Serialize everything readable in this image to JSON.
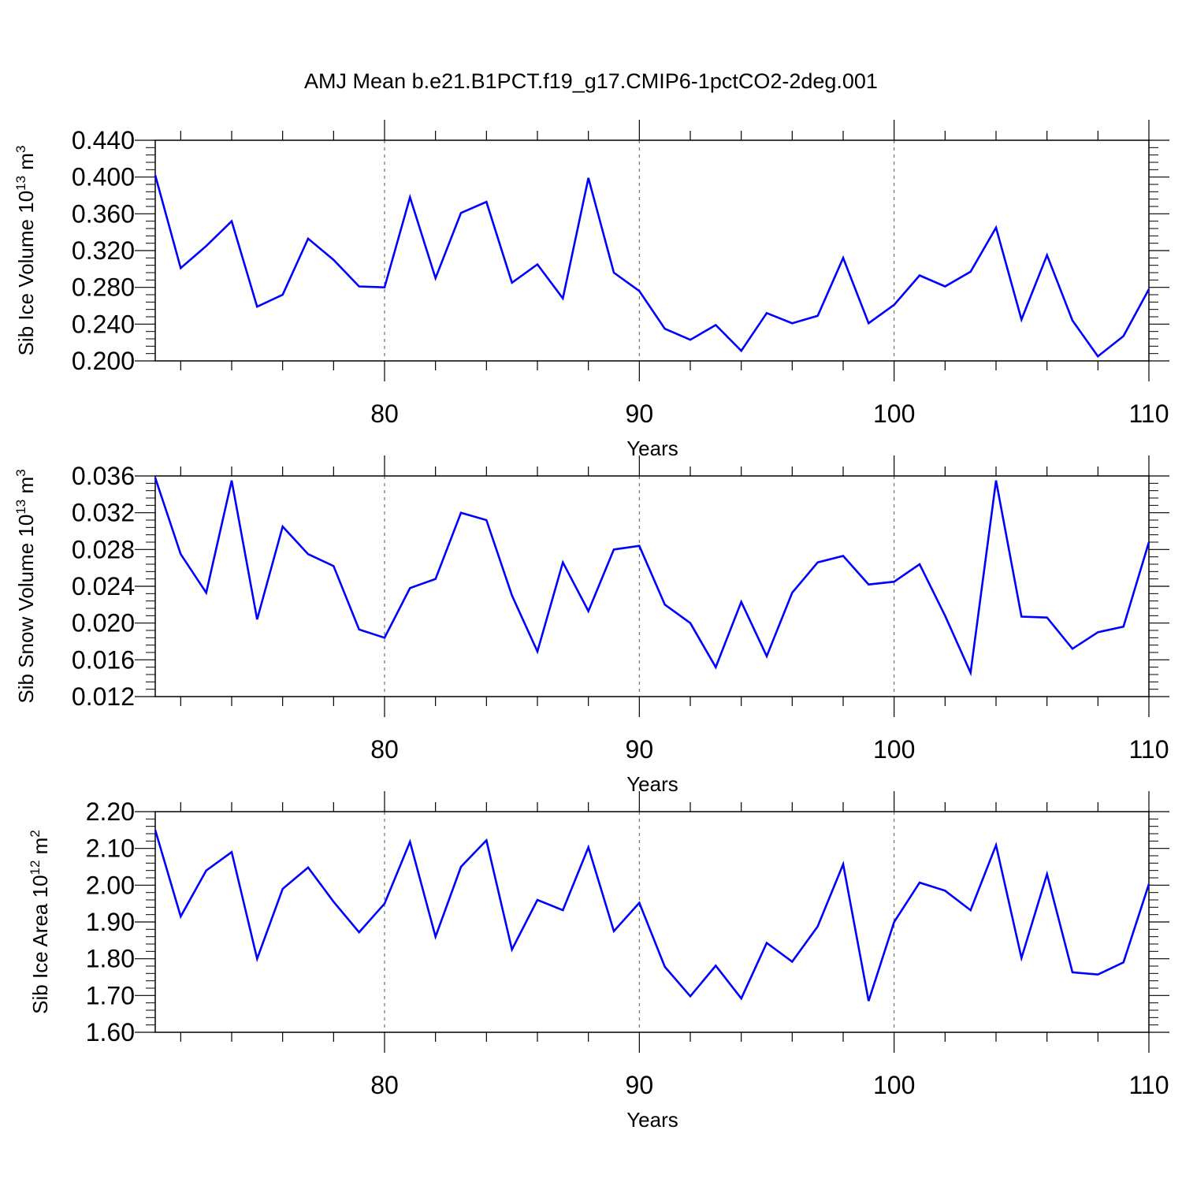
{
  "title": "AMJ Mean b.e21.B1PCT.f19_g17.CMIP6-1pctCO2-2deg.001",
  "colors": {
    "line": "#0000ff",
    "axis": "#000000",
    "grid": "#555555"
  },
  "chart_data": [
    {
      "type": "line",
      "ylabel": "Sib Ice Volume 10",
      "ylabel_exp": "13",
      "ylabel_unit": "m",
      "ylabel_unit_exp": "3",
      "xlabel": "Years",
      "xlim": [
        71,
        110
      ],
      "ylim": [
        0.2,
        0.44
      ],
      "yticks": [
        0.2,
        0.24,
        0.28,
        0.32,
        0.36,
        0.4,
        0.44
      ],
      "ytick_labels": [
        "0.200",
        "0.240",
        "0.280",
        "0.320",
        "0.360",
        "0.400",
        "0.440"
      ],
      "xticks": [
        80,
        90,
        100,
        110
      ],
      "xtick_labels": [
        "80",
        "90",
        "100",
        "110"
      ],
      "grid": "vertical dashed at major x ticks",
      "x": [
        71,
        72,
        73,
        74,
        75,
        76,
        77,
        78,
        79,
        80,
        81,
        82,
        83,
        84,
        85,
        86,
        87,
        88,
        89,
        90,
        91,
        92,
        93,
        94,
        95,
        96,
        97,
        98,
        99,
        100,
        101,
        102,
        103,
        104,
        105,
        106,
        107,
        108,
        109,
        110
      ],
      "series": [
        {
          "values": [
            0.402,
            0.301,
            0.325,
            0.352,
            0.259,
            0.272,
            0.333,
            0.31,
            0.281,
            0.28,
            0.378,
            0.29,
            0.361,
            0.373,
            0.285,
            0.305,
            0.268,
            0.399,
            0.296,
            0.276,
            0.235,
            0.223,
            0.239,
            0.211,
            0.252,
            0.241,
            0.249,
            0.312,
            0.241,
            0.261,
            0.293,
            0.281,
            0.297,
            0.345,
            0.245,
            0.315,
            0.244,
            0.205,
            0.227,
            0.278
          ]
        }
      ]
    },
    {
      "type": "line",
      "ylabel": "Sib Snow Volume 10",
      "ylabel_exp": "13",
      "ylabel_unit": "m",
      "ylabel_unit_exp": "3",
      "xlabel": "Years",
      "xlim": [
        71,
        110
      ],
      "ylim": [
        0.012,
        0.036
      ],
      "yticks": [
        0.012,
        0.016,
        0.02,
        0.024,
        0.028,
        0.032,
        0.036
      ],
      "ytick_labels": [
        "0.012",
        "0.016",
        "0.020",
        "0.024",
        "0.028",
        "0.032",
        "0.036"
      ],
      "xticks": [
        80,
        90,
        100,
        110
      ],
      "xtick_labels": [
        "80",
        "90",
        "100",
        "110"
      ],
      "grid": "vertical dashed at major x ticks",
      "x": [
        71,
        72,
        73,
        74,
        75,
        76,
        77,
        78,
        79,
        80,
        81,
        82,
        83,
        84,
        85,
        86,
        87,
        88,
        89,
        90,
        91,
        92,
        93,
        94,
        95,
        96,
        97,
        98,
        99,
        100,
        101,
        102,
        103,
        104,
        105,
        106,
        107,
        108,
        109,
        110
      ],
      "series": [
        {
          "values": [
            0.0358,
            0.0275,
            0.0233,
            0.0355,
            0.0204,
            0.0305,
            0.0275,
            0.0262,
            0.0193,
            0.0184,
            0.0238,
            0.0248,
            0.032,
            0.0312,
            0.023,
            0.0169,
            0.0266,
            0.0213,
            0.028,
            0.0284,
            0.022,
            0.02,
            0.0152,
            0.0223,
            0.0164,
            0.0233,
            0.0266,
            0.0273,
            0.0242,
            0.0245,
            0.0264,
            0.0208,
            0.0146,
            0.0355,
            0.0207,
            0.0206,
            0.0172,
            0.019,
            0.0196,
            0.0288
          ]
        }
      ]
    },
    {
      "type": "line",
      "ylabel": "Sib Ice Area 10",
      "ylabel_exp": "12",
      "ylabel_unit": "m",
      "ylabel_unit_exp": "2",
      "xlabel": "Years",
      "xlim": [
        71,
        110
      ],
      "ylim": [
        1.6,
        2.2
      ],
      "yticks": [
        1.6,
        1.7,
        1.8,
        1.9,
        2.0,
        2.1,
        2.2
      ],
      "ytick_labels": [
        "1.60",
        "1.70",
        "1.80",
        "1.90",
        "2.00",
        "2.10",
        "2.20"
      ],
      "xticks": [
        80,
        90,
        100,
        110
      ],
      "xtick_labels": [
        "80",
        "90",
        "100",
        "110"
      ],
      "grid": "vertical dashed at major x ticks",
      "x": [
        71,
        72,
        73,
        74,
        75,
        76,
        77,
        78,
        79,
        80,
        81,
        82,
        83,
        84,
        85,
        86,
        87,
        88,
        89,
        90,
        91,
        92,
        93,
        94,
        95,
        96,
        97,
        98,
        99,
        100,
        101,
        102,
        103,
        104,
        105,
        106,
        107,
        108,
        109,
        110
      ],
      "series": [
        {
          "values": [
            2.15,
            1.915,
            2.04,
            2.09,
            1.8,
            1.99,
            2.048,
            1.955,
            1.872,
            1.95,
            2.118,
            1.86,
            2.05,
            2.122,
            1.825,
            1.96,
            1.932,
            2.103,
            1.875,
            1.952,
            1.778,
            1.698,
            1.781,
            1.692,
            1.843,
            1.792,
            1.888,
            2.057,
            1.685,
            1.9,
            2.007,
            1.985,
            1.932,
            2.109,
            1.802,
            2.03,
            1.763,
            1.757,
            1.79,
            2.003
          ]
        }
      ]
    }
  ]
}
